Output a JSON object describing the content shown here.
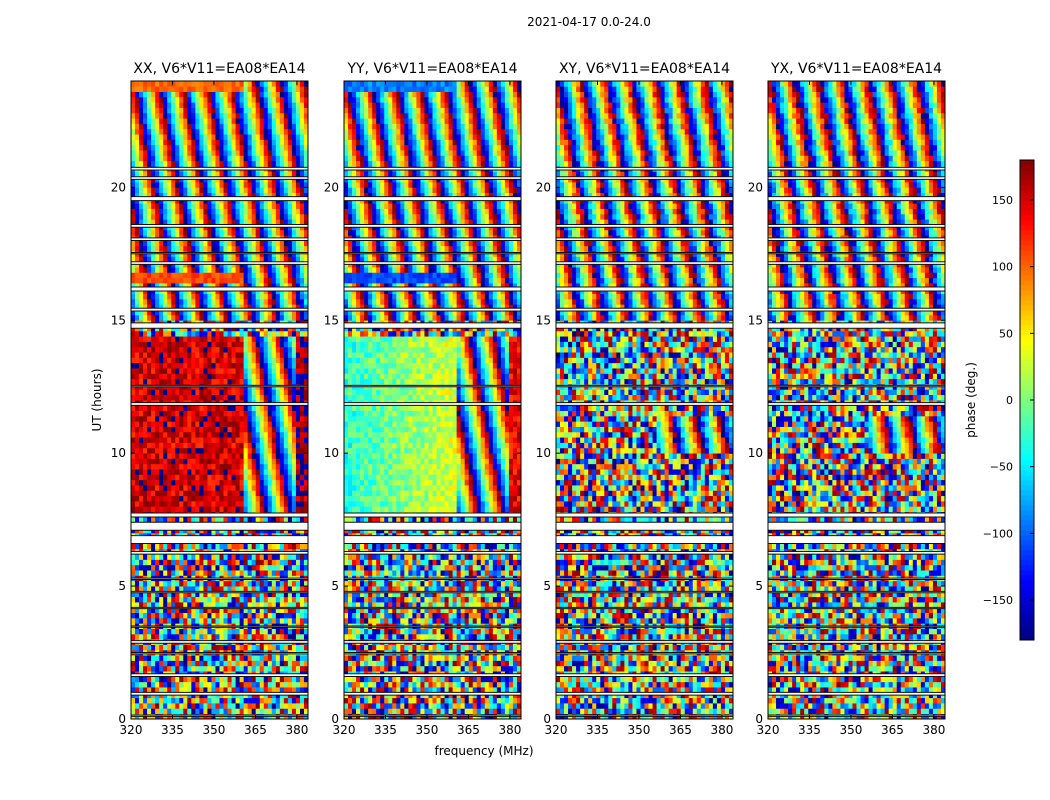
{
  "chart_data": {
    "type": "heatmap",
    "title": "2021-04-17 0.0-24.0",
    "xlabel": "frequency (MHz)",
    "ylabel": "UT (hours)",
    "xlim": [
      320,
      384
    ],
    "ylim": [
      0,
      24
    ],
    "xticks": [
      320,
      335,
      350,
      365,
      380
    ],
    "yticks": [
      0,
      5,
      10,
      15,
      20
    ],
    "panels": [
      {
        "title": "XX, V6*V11=EA08*EA14"
      },
      {
        "title": "YY, V6*V11=EA08*EA14"
      },
      {
        "title": "XY, V6*V11=EA08*EA14"
      },
      {
        "title": "YX, V6*V11=EA08*EA14"
      }
    ],
    "colorbar": {
      "label": "phase (deg.)",
      "colormap": "jet",
      "range": [
        -180,
        180
      ],
      "ticks": [
        150,
        100,
        50,
        0,
        -50,
        -100,
        -150
      ],
      "tick_labels": [
        "150",
        "100",
        "50",
        "0",
        "−50",
        "−100",
        "−150"
      ]
    },
    "flagged_gaps_hours": [
      [
        0.1,
        0.15
      ],
      [
        0.9,
        1.0
      ],
      [
        1.6,
        1.7
      ],
      [
        2.45,
        2.5
      ],
      [
        2.85,
        2.95
      ],
      [
        3.45,
        3.5
      ],
      [
        4.15,
        4.2
      ],
      [
        4.75,
        4.8
      ],
      [
        5.25,
        5.3
      ],
      [
        6.2,
        6.3
      ],
      [
        6.6,
        6.9
      ],
      [
        7.1,
        7.4
      ],
      [
        7.6,
        7.75
      ],
      [
        11.8,
        11.9
      ],
      [
        12.5,
        12.55
      ],
      [
        14.7,
        14.9
      ],
      [
        15.35,
        15.45
      ],
      [
        16.1,
        16.25
      ],
      [
        17.1,
        17.2
      ],
      [
        17.5,
        17.55
      ],
      [
        18.0,
        18.1
      ],
      [
        18.5,
        18.6
      ],
      [
        19.5,
        19.65
      ],
      [
        20.3,
        20.4
      ],
      [
        20.65,
        20.75
      ]
    ]
  }
}
